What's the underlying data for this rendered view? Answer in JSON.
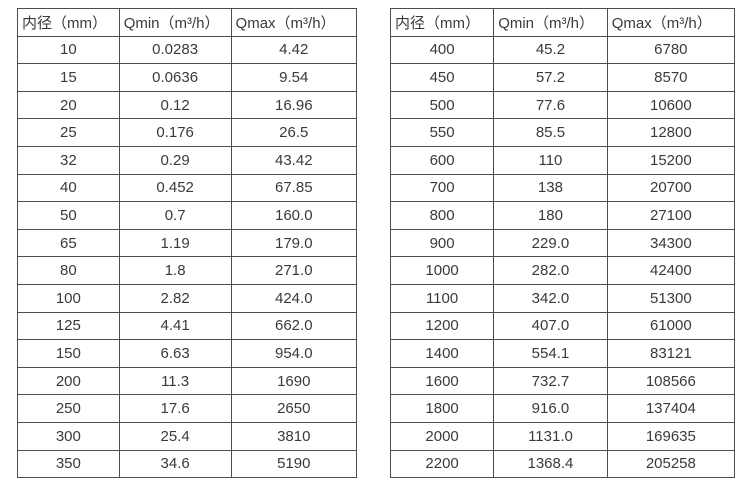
{
  "tables": [
    {
      "name": "small-diameters",
      "headers": [
        "内径（mm）",
        "Qmin（m³/h）",
        "Qmax（m³/h）"
      ],
      "rows": [
        [
          "10",
          "0.0283",
          "4.42"
        ],
        [
          "15",
          "0.0636",
          "9.54"
        ],
        [
          "20",
          "0.12",
          "16.96"
        ],
        [
          "25",
          "0.176",
          "26.5"
        ],
        [
          "32",
          "0.29",
          "43.42"
        ],
        [
          "40",
          "0.452",
          "67.85"
        ],
        [
          "50",
          "0.7",
          "160.0"
        ],
        [
          "65",
          "1.19",
          "179.0"
        ],
        [
          "80",
          "1.8",
          "271.0"
        ],
        [
          "100",
          "2.82",
          "424.0"
        ],
        [
          "125",
          "4.41",
          "662.0"
        ],
        [
          "150",
          "6.63",
          "954.0"
        ],
        [
          "200",
          "11.3",
          "1690"
        ],
        [
          "250",
          "17.6",
          "2650"
        ],
        [
          "300",
          "25.4",
          "3810"
        ],
        [
          "350",
          "34.6",
          "5190"
        ]
      ]
    },
    {
      "name": "large-diameters",
      "headers": [
        "内径（mm）",
        "Qmin（m³/h）",
        "Qmax（m³/h）"
      ],
      "rows": [
        [
          "400",
          "45.2",
          "6780"
        ],
        [
          "450",
          "57.2",
          "8570"
        ],
        [
          "500",
          "77.6",
          "10600"
        ],
        [
          "550",
          "85.5",
          "12800"
        ],
        [
          "600",
          "110",
          "15200"
        ],
        [
          "700",
          "138",
          "20700"
        ],
        [
          "800",
          "180",
          "27100"
        ],
        [
          "900",
          "229.0",
          "34300"
        ],
        [
          "1000",
          "282.0",
          "42400"
        ],
        [
          "1100",
          "342.0",
          "51300"
        ],
        [
          "1200",
          "407.0",
          "61000"
        ],
        [
          "1400",
          "554.1",
          "83121"
        ],
        [
          "1600",
          "732.7",
          "108566"
        ],
        [
          "1800",
          "916.0",
          "137404"
        ],
        [
          "2000",
          "1131.0",
          "169635"
        ],
        [
          "2200",
          "1368.4",
          "205258"
        ]
      ]
    }
  ],
  "colors": {
    "border": "#4d4d4d",
    "text": "#3a3a3a",
    "background": "#ffffff"
  }
}
